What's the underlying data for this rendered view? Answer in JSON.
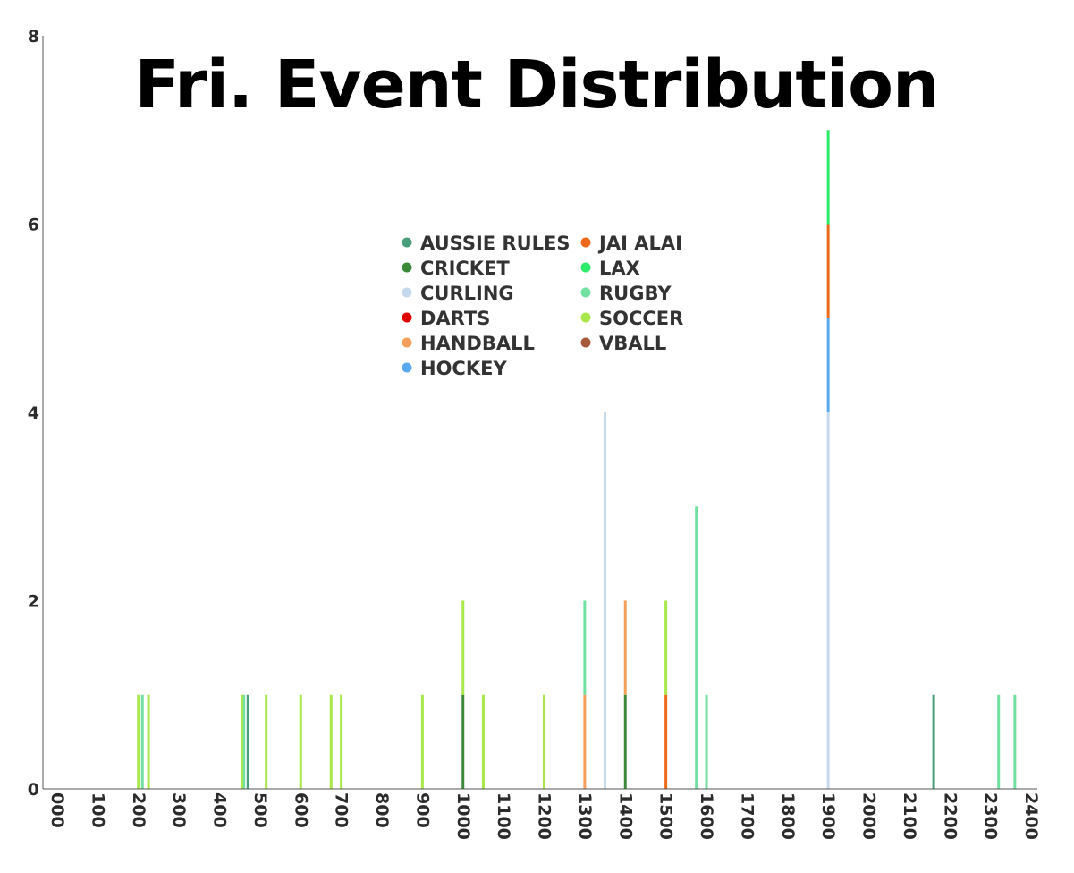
{
  "chart_data": {
    "type": "bar",
    "stacked": true,
    "title": "Fri. Event Distribution",
    "xlabel": "",
    "ylabel": "",
    "xlim": [
      0,
      2400
    ],
    "ylim": [
      0,
      8
    ],
    "x_ticks": [
      "000",
      "100",
      "200",
      "300",
      "400",
      "500",
      "600",
      "700",
      "800",
      "900",
      "1000",
      "1100",
      "1200",
      "1300",
      "1400",
      "1500",
      "1600",
      "1700",
      "1800",
      "1900",
      "2000",
      "2100",
      "2200",
      "2300",
      "2400"
    ],
    "y_ticks": [
      0,
      2,
      4,
      6,
      8
    ],
    "grid": false,
    "legend": {
      "position": "top-center",
      "columns": 2
    },
    "series": [
      {
        "name": "AUSSIE RULES",
        "color": "#4a9e7a",
        "points": [
          [
            470,
            1
          ],
          [
            2160,
            1
          ]
        ]
      },
      {
        "name": "CRICKET",
        "color": "#3a8a3a",
        "points": [
          [
            1000,
            1
          ],
          [
            1400,
            1
          ]
        ]
      },
      {
        "name": "CURLING",
        "color": "#c6d9ec",
        "points": [
          [
            1350,
            4
          ],
          [
            1900,
            4
          ]
        ]
      },
      {
        "name": "DARTS",
        "color": "#e00000",
        "points": []
      },
      {
        "name": "HANDBALL",
        "color": "#f5a05a",
        "points": [
          [
            1300,
            1
          ],
          [
            1400,
            1
          ]
        ]
      },
      {
        "name": "HOCKEY",
        "color": "#5aa8ee",
        "points": [
          [
            1900,
            1
          ]
        ]
      },
      {
        "name": "JAI ALAI",
        "color": "#ee6a1a",
        "points": [
          [
            1500,
            1
          ],
          [
            1900,
            1
          ]
        ]
      },
      {
        "name": "LAX",
        "color": "#2eea6a",
        "points": [
          [
            1900,
            1
          ]
        ]
      },
      {
        "name": "RUGBY",
        "color": "#72e0a0",
        "points": [
          [
            210,
            1
          ],
          [
            460,
            1
          ],
          [
            1300,
            1
          ],
          [
            1575,
            3
          ],
          [
            1600,
            1
          ],
          [
            2320,
            1
          ],
          [
            2360,
            1
          ]
        ]
      },
      {
        "name": "SOCCER",
        "color": "#a8e84a",
        "points": [
          [
            200,
            1
          ],
          [
            225,
            1
          ],
          [
            455,
            1
          ],
          [
            515,
            1
          ],
          [
            600,
            1
          ],
          [
            675,
            1
          ],
          [
            700,
            1
          ],
          [
            900,
            1
          ],
          [
            1000,
            1
          ],
          [
            1050,
            1
          ],
          [
            1200,
            1
          ],
          [
            1500,
            1
          ]
        ]
      },
      {
        "name": "VBALL",
        "color": "#a65a3a",
        "points": []
      }
    ]
  }
}
